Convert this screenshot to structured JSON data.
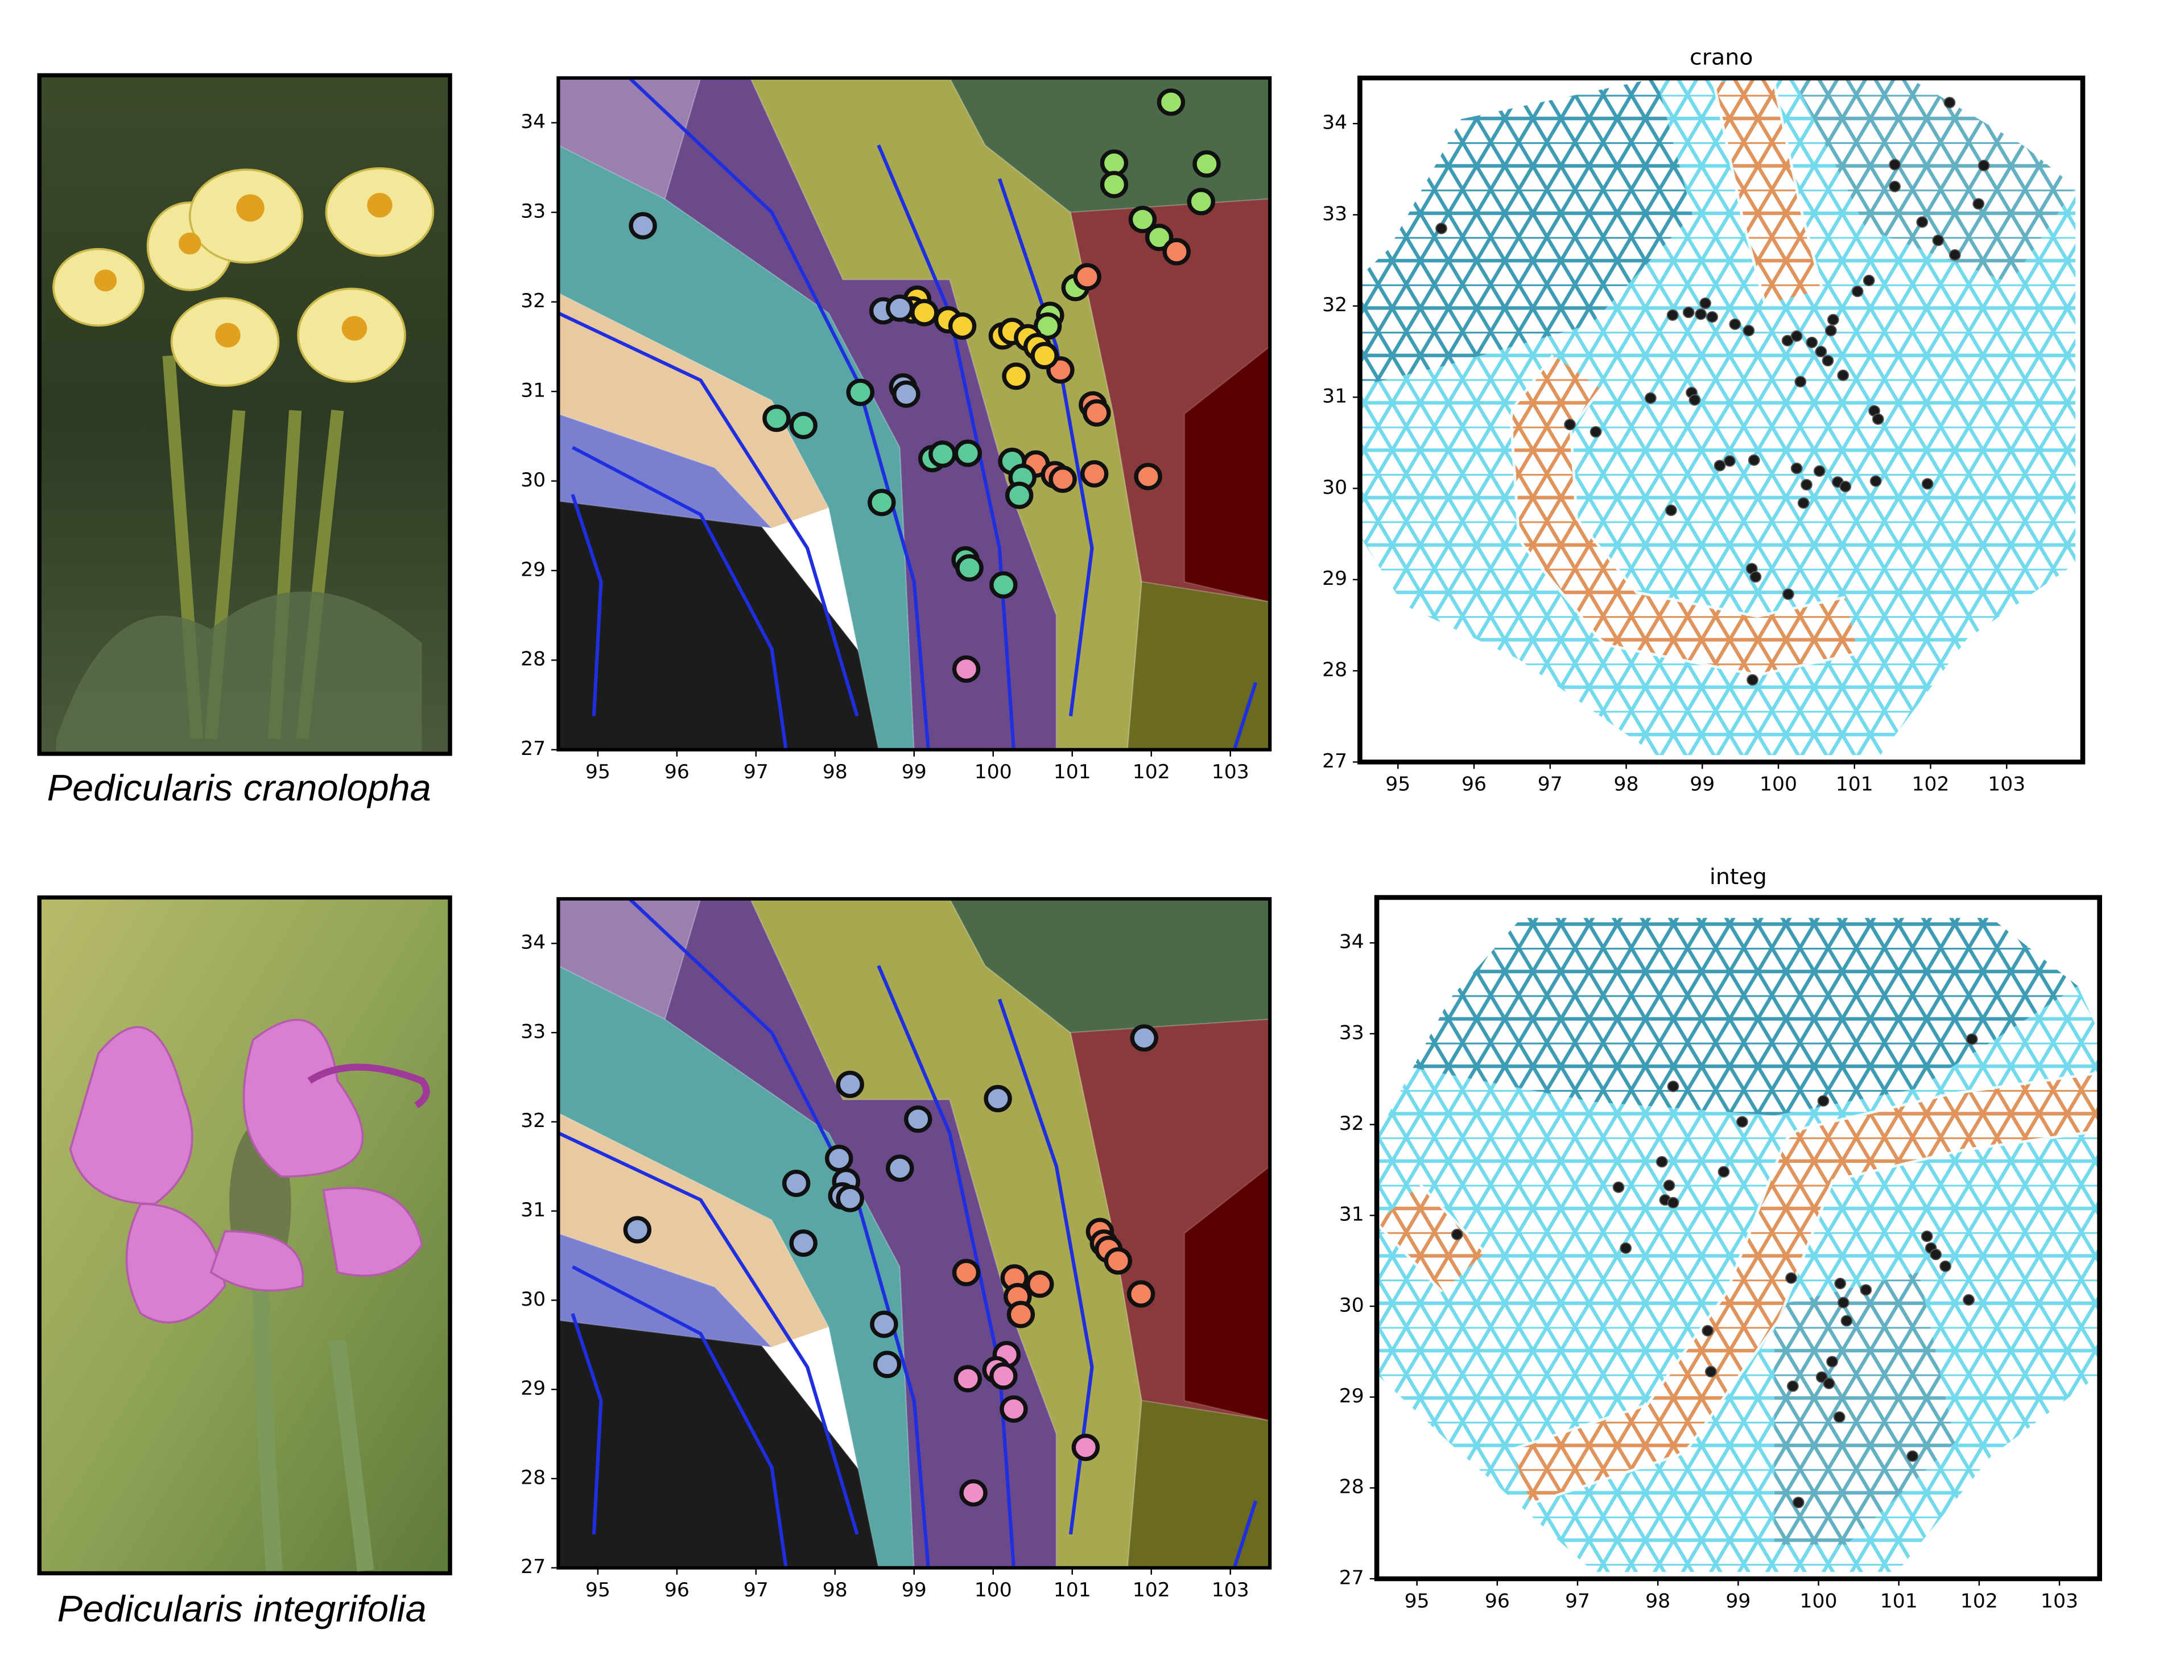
{
  "figure_captions": [
    "Pedicularis cranolopha",
    "Pedicularis integrifolia"
  ],
  "chart_data": [
    {
      "type": "scatter",
      "xlim": [
        94.5,
        103.5
      ],
      "ylim": [
        27,
        34.5
      ],
      "xticks": [
        95,
        96,
        97,
        98,
        99,
        100,
        101,
        102,
        103
      ],
      "yticks": [
        27,
        28,
        29,
        30,
        31,
        32,
        33,
        34
      ],
      "series": [
        {
          "color": "#9be06a",
          "x": [
            102.25,
            101.53,
            101.53,
            102.7,
            102.63,
            101.89,
            102.1,
            101.04,
            100.72,
            100.69
          ],
          "values": [
            34.23,
            33.55,
            33.31,
            33.54,
            33.12,
            32.92,
            32.72,
            32.16,
            31.85,
            31.73
          ]
        },
        {
          "color": "#f4845f",
          "x": [
            102.32,
            101.19,
            100.85,
            101.26,
            101.31,
            100.54,
            100.78,
            100.88,
            101.28,
            101.96
          ],
          "values": [
            32.56,
            32.28,
            31.24,
            30.85,
            30.76,
            30.19,
            30.07,
            30.02,
            30.08,
            30.05
          ]
        },
        {
          "color": "#f7d031",
          "x": [
            99.04,
            98.98,
            99.13,
            99.43,
            99.61,
            100.12,
            100.24,
            100.44,
            100.56,
            100.65,
            100.29
          ],
          "values": [
            32.03,
            31.91,
            31.88,
            31.8,
            31.73,
            31.62,
            31.67,
            31.6,
            31.5,
            31.4,
            31.17
          ]
        },
        {
          "color": "#93a9d6",
          "x": [
            95.57,
            98.61,
            98.82,
            98.86,
            98.9
          ],
          "values": [
            32.85,
            31.9,
            31.93,
            31.05,
            30.97
          ]
        },
        {
          "color": "#5cc99a",
          "x": [
            97.26,
            97.6,
            98.32,
            98.59,
            99.23,
            99.36,
            99.68,
            100.24,
            100.37,
            100.33,
            99.65,
            99.7,
            100.13
          ],
          "values": [
            30.7,
            30.62,
            30.99,
            29.76,
            30.25,
            30.3,
            30.31,
            30.22,
            30.04,
            29.84,
            29.12,
            29.03,
            28.84
          ]
        },
        {
          "color": "#ee8fc8",
          "x": [
            99.66
          ],
          "values": [
            27.9
          ]
        }
      ]
    },
    {
      "type": "scatter",
      "xlim": [
        94.5,
        103.5
      ],
      "ylim": [
        27,
        34.5
      ],
      "xticks": [
        95,
        96,
        97,
        98,
        99,
        100,
        101,
        102,
        103
      ],
      "yticks": [
        27,
        28,
        29,
        30,
        31,
        32,
        33,
        34
      ],
      "series": [
        {
          "color": "#93a9d6",
          "x": [
            101.91,
            98.19,
            100.06,
            99.05,
            98.05,
            97.51,
            98.14,
            98.09,
            98.19,
            98.82,
            95.5,
            97.6,
            98.62,
            98.66
          ],
          "values": [
            32.94,
            32.42,
            32.26,
            32.03,
            31.59,
            31.31,
            31.33,
            31.17,
            31.14,
            31.48,
            30.79,
            30.64,
            29.73,
            29.28
          ]
        },
        {
          "color": "#f4845f",
          "x": [
            101.35,
            101.4,
            101.46,
            101.58,
            101.87,
            99.66,
            100.27,
            100.59,
            100.31,
            100.35
          ],
          "values": [
            30.77,
            30.64,
            30.57,
            30.44,
            30.07,
            30.31,
            30.25,
            30.18,
            30.04,
            29.84
          ]
        },
        {
          "color": "#ee8fc8",
          "x": [
            100.17,
            100.04,
            99.68,
            100.13,
            100.26,
            101.17,
            99.75
          ],
          "values": [
            29.39,
            29.22,
            29.12,
            29.15,
            28.78,
            28.35,
            27.84
          ]
        }
      ]
    },
    {
      "type": "scatter",
      "title": "crano",
      "xlim": [
        94.5,
        104
      ],
      "ylim": [
        27,
        34.5
      ],
      "xticks": [
        95,
        96,
        97,
        98,
        99,
        100,
        101,
        102,
        103
      ],
      "yticks": [
        27,
        28,
        29,
        30,
        31,
        32,
        33,
        34
      ],
      "series": [
        {
          "color": "#1a1a1a",
          "x": [
            102.25,
            101.53,
            101.53,
            102.7,
            102.63,
            101.89,
            102.1,
            101.04,
            100.72,
            100.69,
            102.32,
            101.19,
            100.85,
            101.26,
            101.31,
            100.54,
            100.78,
            100.88,
            101.28,
            101.96,
            99.04,
            98.98,
            99.13,
            99.43,
            99.61,
            100.12,
            100.24,
            100.44,
            100.56,
            100.65,
            100.29,
            95.57,
            98.61,
            98.82,
            98.86,
            98.9,
            97.26,
            97.6,
            98.32,
            98.59,
            99.23,
            99.36,
            99.68,
            100.24,
            100.37,
            100.33,
            99.65,
            99.7,
            100.13,
            99.66
          ],
          "values": [
            34.23,
            33.55,
            33.31,
            33.54,
            33.12,
            32.92,
            32.72,
            32.16,
            31.85,
            31.73,
            32.56,
            32.28,
            31.24,
            30.85,
            30.76,
            30.19,
            30.07,
            30.02,
            30.08,
            30.05,
            32.03,
            31.91,
            31.88,
            31.8,
            31.73,
            31.62,
            31.67,
            31.6,
            31.5,
            31.4,
            31.17,
            32.85,
            31.9,
            31.93,
            31.05,
            30.97,
            30.7,
            30.62,
            30.99,
            29.76,
            30.25,
            30.3,
            30.31,
            30.22,
            30.04,
            29.84,
            29.12,
            29.03,
            28.84,
            27.9
          ]
        }
      ]
    },
    {
      "type": "scatter",
      "title": "integ",
      "xlim": [
        94.5,
        103.5
      ],
      "ylim": [
        27,
        34.5
      ],
      "xticks": [
        95,
        96,
        97,
        98,
        99,
        100,
        101,
        102,
        103
      ],
      "yticks": [
        27,
        28,
        29,
        30,
        31,
        32,
        33,
        34
      ],
      "series": [
        {
          "color": "#1a1a1a",
          "x": [
            101.91,
            98.19,
            100.06,
            99.05,
            98.05,
            97.51,
            98.14,
            98.09,
            98.19,
            98.82,
            95.5,
            97.6,
            98.62,
            98.66,
            101.35,
            101.4,
            101.46,
            101.58,
            101.87,
            99.66,
            100.27,
            100.59,
            100.31,
            100.35,
            100.17,
            100.04,
            99.68,
            100.13,
            100.26,
            101.17,
            99.75
          ],
          "values": [
            32.94,
            32.42,
            32.26,
            32.03,
            31.59,
            31.31,
            31.33,
            31.17,
            31.14,
            31.48,
            30.79,
            30.64,
            29.73,
            29.28,
            30.77,
            30.64,
            30.57,
            30.44,
            30.07,
            30.31,
            30.25,
            30.18,
            30.04,
            29.84,
            29.39,
            29.22,
            29.12,
            29.15,
            28.78,
            28.35,
            27.84
          ]
        }
      ]
    }
  ]
}
